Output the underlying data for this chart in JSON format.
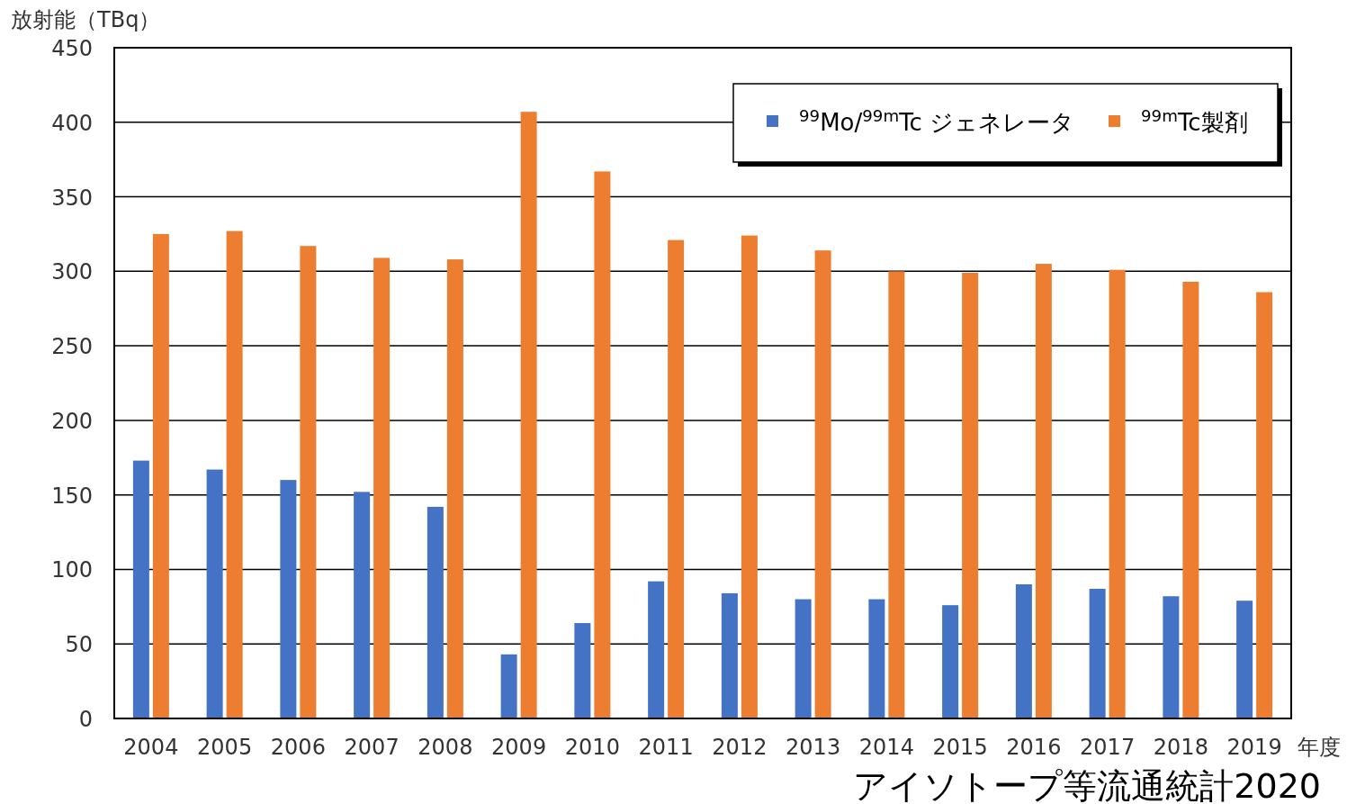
{
  "chart_data": {
    "type": "bar",
    "ylabel": "放射能（TBq）",
    "xlabel": "年度",
    "categories": [
      "2004",
      "2005",
      "2006",
      "2007",
      "2008",
      "2009",
      "2010",
      "2011",
      "2012",
      "2013",
      "2014",
      "2015",
      "2016",
      "2017",
      "2018",
      "2019"
    ],
    "series": [
      {
        "name": "$^{99}$Mo/$^{99m}$Tc ジェネレータ",
        "color": "#4472c4",
        "values": [
          173,
          167,
          160,
          152,
          142,
          43,
          64,
          92,
          84,
          80,
          80,
          76,
          90,
          87,
          82,
          79
        ]
      },
      {
        "name": "$^{99m}$Tc製剤",
        "color": "#ed7d31",
        "values": [
          325,
          327,
          317,
          309,
          308,
          407,
          367,
          321,
          324,
          314,
          300,
          299,
          305,
          301,
          293,
          286
        ]
      }
    ],
    "ylim": [
      0,
      450
    ],
    "yticks": [
      0,
      50,
      100,
      150,
      200,
      250,
      300,
      350,
      400,
      450
    ],
    "grid": "y",
    "legend": "top right",
    "annotations": [
      "アイソトープ等流通統計2020"
    ]
  }
}
